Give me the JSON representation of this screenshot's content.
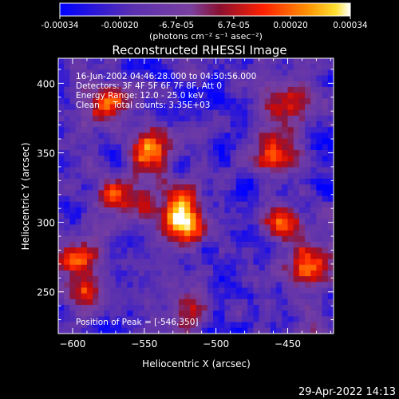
{
  "colors": {
    "background": "#000000",
    "text": "#ffffff",
    "colormap": [
      "#0000ff",
      "#4020c0",
      "#6a3aa8",
      "#7a40a0",
      "#a01040",
      "#ff2000",
      "#ff8000",
      "#ffd000",
      "#ffffff"
    ]
  },
  "colorbar": {
    "tick_labels": [
      "-0.00034",
      "-0.00020",
      "-6.7e-05",
      "6.7e-05",
      "0.00020",
      "0.00034"
    ],
    "tick_values": [
      -0.00034,
      -0.0002,
      -6.7e-05,
      6.7e-05,
      0.0002,
      0.00034
    ],
    "unit_label": "(photons cm⁻² s⁻¹ asec⁻²)",
    "range": [
      -0.00034,
      0.00034
    ]
  },
  "chart_data": {
    "type": "heatmap",
    "title": "Reconstructed RHESSI Image",
    "xlabel": "Heliocentric X (arcsec)",
    "ylabel": "Heliocentric Y (arcsec)",
    "xlim": [
      -610,
      -418
    ],
    "ylim": [
      220,
      418
    ],
    "x_ticks": [
      -600,
      -550,
      -500,
      -450
    ],
    "y_ticks": [
      250,
      300,
      350,
      400
    ],
    "x_tick_labels": [
      "−600",
      "−550",
      "−500",
      "−450"
    ],
    "y_tick_labels": [
      "250",
      "300",
      "350",
      "400"
    ],
    "annotations": [
      "16-Jun-2002 04:46:28.000 to 04:50:56.000",
      "Detectors: 3F 4F 5F 6F 7F 8F, Att 0",
      "Energy Range: 12.0 - 25.0 keV",
      "Clean     Total counts: 3.35E+03"
    ],
    "peak_label": "Position of Peak = [-546,350]",
    "peak_position": [
      -546,
      350
    ],
    "bright_regions": [
      {
        "x": -546,
        "y": 350,
        "intensity": 1.0
      },
      {
        "x": -575,
        "y": 385,
        "intensity": 0.75
      },
      {
        "x": -525,
        "y": 310,
        "intensity": 0.85
      },
      {
        "x": -565,
        "y": 320,
        "intensity": 0.8
      },
      {
        "x": -520,
        "y": 295,
        "intensity": 0.7
      },
      {
        "x": -460,
        "y": 350,
        "intensity": 0.8
      },
      {
        "x": -455,
        "y": 300,
        "intensity": 0.75
      },
      {
        "x": -435,
        "y": 270,
        "intensity": 0.95
      },
      {
        "x": -445,
        "y": 385,
        "intensity": 0.7
      },
      {
        "x": -600,
        "y": 275,
        "intensity": 0.75
      },
      {
        "x": -590,
        "y": 250,
        "intensity": 0.65
      },
      {
        "x": -520,
        "y": 240,
        "intensity": 0.55
      }
    ],
    "grid": false
  },
  "footer": {
    "timestamp": "29-Apr-2022 14:13"
  }
}
